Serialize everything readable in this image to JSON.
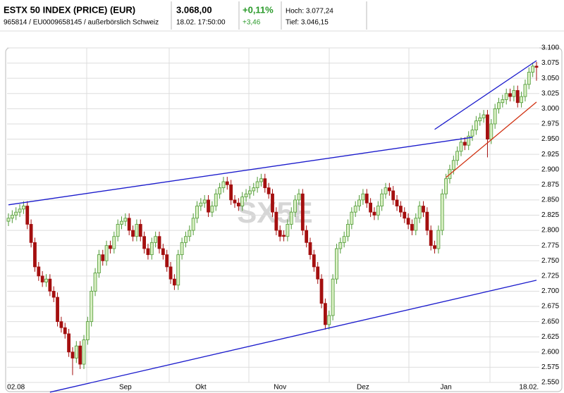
{
  "header": {
    "name": "ESTX 50 INDEX (PRICE) (EUR)",
    "ids": "965814 / EU0009658145 / außerbörslich Schweiz",
    "price": "3.068,00",
    "time": "18.02. 17:50:00",
    "change_pct": "+0,11%",
    "change_abs": "+3,46",
    "high": "Hoch: 3.077,24",
    "low": "Tief: 3.046,15"
  },
  "chart_data": {
    "type": "candlestick",
    "watermark": "SX5E",
    "categories": [
      null,
      null,
      "02.08",
      null,
      null,
      null,
      null,
      null,
      null,
      null,
      null,
      null,
      null,
      null,
      null,
      null,
      null,
      null,
      null,
      null,
      null,
      null,
      null,
      null,
      null,
      null,
      null,
      null,
      null,
      null,
      null,
      "Sep",
      null,
      null,
      null,
      null,
      null,
      null,
      null,
      null,
      null,
      null,
      null,
      null,
      null,
      null,
      null,
      null,
      null,
      null,
      null,
      "Okt",
      null,
      null,
      null,
      null,
      null,
      null,
      null,
      null,
      null,
      null,
      null,
      null,
      null,
      null,
      null,
      null,
      null,
      null,
      null,
      null,
      "Nov",
      null,
      null,
      null,
      null,
      null,
      null,
      null,
      null,
      null,
      null,
      null,
      null,
      null,
      null,
      null,
      null,
      null,
      null,
      null,
      null,
      null,
      "Dez",
      null,
      null,
      null,
      null,
      null,
      null,
      null,
      null,
      null,
      null,
      null,
      null,
      null,
      null,
      null,
      null,
      null,
      null,
      null,
      null,
      null,
      "Jan",
      null,
      null,
      null,
      null,
      null,
      null,
      null,
      null,
      null,
      null,
      null,
      null,
      null,
      null,
      null,
      null,
      null,
      null,
      null,
      null,
      null,
      "18.02.",
      null,
      null
    ],
    "open": [
      2815,
      2820,
      2825,
      2830,
      2835,
      2840,
      2810,
      2780,
      2740,
      2725,
      2715,
      2720,
      2700,
      2690,
      2650,
      2640,
      2630,
      2600,
      2590,
      2610,
      2580,
      2620,
      2650,
      2700,
      2730,
      2760,
      2750,
      2775,
      2770,
      2790,
      2810,
      2815,
      2820,
      2800,
      2790,
      2810,
      2790,
      2770,
      2760,
      2780,
      2790,
      2770,
      2760,
      2740,
      2720,
      2710,
      2760,
      2780,
      2790,
      2800,
      2820,
      2840,
      2845,
      2850,
      2830,
      2840,
      2860,
      2870,
      2880,
      2875,
      2850,
      2845,
      2840,
      2855,
      2860,
      2865,
      2870,
      2880,
      2885,
      2870,
      2860,
      2830,
      2800,
      2792,
      2790,
      2810,
      2830,
      2850,
      2860,
      2800,
      2780,
      2760,
      2740,
      2720,
      2680,
      2645,
      2660,
      2720,
      2770,
      2780,
      2790,
      2810,
      2830,
      2840,
      2850,
      2860,
      2845,
      2830,
      2825,
      2840,
      2860,
      2870,
      2865,
      2850,
      2840,
      2830,
      2820,
      2810,
      2800,
      2820,
      2840,
      2830,
      2800,
      2775,
      2770,
      2800,
      2860,
      2885,
      2900,
      2915,
      2930,
      2945,
      2940,
      2955,
      2965,
      2980,
      2985,
      2990,
      2950,
      2975,
      3000,
      3010,
      3015,
      3025,
      3020,
      3030,
      3010,
      3020,
      3040,
      3060,
      3070
    ],
    "high": [
      2828,
      2833,
      2838,
      2843,
      2848,
      2848,
      2818,
      2788,
      2748,
      2733,
      2728,
      2728,
      2708,
      2698,
      2658,
      2648,
      2638,
      2608,
      2618,
      2618,
      2628,
      2658,
      2708,
      2738,
      2768,
      2768,
      2783,
      2783,
      2798,
      2818,
      2823,
      2828,
      2828,
      2808,
      2818,
      2818,
      2798,
      2778,
      2788,
      2798,
      2798,
      2778,
      2768,
      2748,
      2728,
      2768,
      2788,
      2798,
      2808,
      2828,
      2848,
      2853,
      2858,
      2858,
      2848,
      2868,
      2878,
      2888,
      2888,
      2883,
      2858,
      2853,
      2863,
      2868,
      2873,
      2878,
      2888,
      2893,
      2893,
      2878,
      2868,
      2838,
      2808,
      2800,
      2818,
      2838,
      2858,
      2868,
      2868,
      2808,
      2788,
      2768,
      2748,
      2728,
      2688,
      2668,
      2728,
      2778,
      2788,
      2798,
      2818,
      2838,
      2848,
      2858,
      2868,
      2868,
      2853,
      2838,
      2848,
      2868,
      2878,
      2878,
      2873,
      2858,
      2848,
      2838,
      2828,
      2818,
      2828,
      2848,
      2848,
      2838,
      2808,
      2783,
      2808,
      2868,
      2893,
      2908,
      2923,
      2938,
      2953,
      2953,
      2963,
      2973,
      2988,
      2993,
      2998,
      2998,
      2983,
      3008,
      3018,
      3023,
      3033,
      3033,
      3038,
      3038,
      3028,
      3048,
      3068,
      3076,
      3077
    ],
    "low": [
      2807,
      2812,
      2817,
      2822,
      2827,
      2802,
      2772,
      2732,
      2717,
      2707,
      2707,
      2692,
      2682,
      2642,
      2632,
      2622,
      2592,
      2562,
      2582,
      2572,
      2572,
      2612,
      2642,
      2692,
      2722,
      2742,
      2742,
      2762,
      2762,
      2782,
      2802,
      2807,
      2792,
      2782,
      2782,
      2782,
      2762,
      2752,
      2752,
      2772,
      2762,
      2752,
      2732,
      2712,
      2702,
      2702,
      2752,
      2772,
      2782,
      2792,
      2812,
      2832,
      2837,
      2822,
      2822,
      2832,
      2852,
      2862,
      2867,
      2842,
      2837,
      2832,
      2832,
      2847,
      2852,
      2857,
      2862,
      2872,
      2862,
      2852,
      2822,
      2792,
      2782,
      2782,
      2782,
      2802,
      2822,
      2842,
      2792,
      2772,
      2752,
      2732,
      2712,
      2672,
      2637,
      2637,
      2652,
      2712,
      2762,
      2772,
      2782,
      2802,
      2822,
      2832,
      2842,
      2837,
      2822,
      2817,
      2817,
      2832,
      2852,
      2857,
      2842,
      2832,
      2822,
      2812,
      2802,
      2792,
      2792,
      2812,
      2822,
      2792,
      2767,
      2762,
      2762,
      2792,
      2852,
      2877,
      2892,
      2907,
      2922,
      2932,
      2932,
      2947,
      2957,
      2972,
      2977,
      2920,
      2942,
      2967,
      2992,
      3002,
      3007,
      3012,
      3012,
      3002,
      3002,
      3012,
      3032,
      3052,
      3046
    ],
    "close": [
      2820,
      2825,
      2830,
      2835,
      2840,
      2810,
      2780,
      2740,
      2725,
      2715,
      2720,
      2700,
      2690,
      2650,
      2640,
      2630,
      2600,
      2590,
      2610,
      2580,
      2620,
      2650,
      2700,
      2730,
      2760,
      2750,
      2775,
      2770,
      2790,
      2810,
      2815,
      2820,
      2800,
      2790,
      2810,
      2790,
      2770,
      2760,
      2780,
      2790,
      2770,
      2760,
      2740,
      2720,
      2710,
      2760,
      2780,
      2790,
      2800,
      2820,
      2840,
      2845,
      2850,
      2830,
      2840,
      2860,
      2870,
      2880,
      2875,
      2850,
      2845,
      2840,
      2855,
      2860,
      2865,
      2870,
      2880,
      2885,
      2870,
      2860,
      2830,
      2800,
      2790,
      2790,
      2810,
      2830,
      2850,
      2860,
      2800,
      2780,
      2760,
      2740,
      2720,
      2680,
      2645,
      2660,
      2720,
      2770,
      2780,
      2790,
      2810,
      2830,
      2840,
      2850,
      2860,
      2845,
      2830,
      2825,
      2840,
      2860,
      2870,
      2865,
      2850,
      2840,
      2830,
      2820,
      2810,
      2800,
      2820,
      2840,
      2830,
      2800,
      2775,
      2770,
      2800,
      2860,
      2885,
      2900,
      2915,
      2930,
      2945,
      2940,
      2955,
      2965,
      2980,
      2985,
      2990,
      2950,
      2975,
      3000,
      3010,
      3015,
      3025,
      3020,
      3030,
      3010,
      3020,
      3040,
      3060,
      3070,
      3068
    ],
    "up_color": "#d8efc2",
    "up_edge": "#4f9a35",
    "down_color": "#a40f0f",
    "ylim": [
      2550,
      3100
    ],
    "yticks": [
      {
        "value": 2550,
        "label": "2.550"
      },
      {
        "value": 2575,
        "label": "2.575"
      },
      {
        "value": 2600,
        "label": "2.600"
      },
      {
        "value": 2625,
        "label": "2.625"
      },
      {
        "value": 2650,
        "label": "2.650"
      },
      {
        "value": 2675,
        "label": "2.675"
      },
      {
        "value": 2700,
        "label": "2.700"
      },
      {
        "value": 2725,
        "label": "2.725"
      },
      {
        "value": 2750,
        "label": "2.750"
      },
      {
        "value": 2775,
        "label": "2.775"
      },
      {
        "value": 2800,
        "label": "2.800"
      },
      {
        "value": 2825,
        "label": "2.825"
      },
      {
        "value": 2850,
        "label": "2.850"
      },
      {
        "value": 2875,
        "label": "2.875"
      },
      {
        "value": 2900,
        "label": "2.900"
      },
      {
        "value": 2925,
        "label": "2.925"
      },
      {
        "value": 2950,
        "label": "2.950"
      },
      {
        "value": 2975,
        "label": "2.975"
      },
      {
        "value": 3000,
        "label": "3.000"
      },
      {
        "value": 3025,
        "label": "3.025"
      },
      {
        "value": 3050,
        "label": "3.050"
      },
      {
        "value": 3075,
        "label": "3.075"
      },
      {
        "value": 3100,
        "label": "3.100"
      }
    ],
    "grid": true,
    "trend_lines": [
      {
        "color": "#1a1acc",
        "x": [
          11,
          140
        ],
        "y": [
          2534,
          2718
        ]
      },
      {
        "color": "#1a1acc",
        "x": [
          0,
          123
        ],
        "y": [
          2842,
          2953
        ]
      },
      {
        "color": "#1a1acc",
        "x": [
          113,
          140
        ],
        "y": [
          2966,
          3079
        ]
      },
      {
        "color": "#d03010",
        "x": [
          116,
          140
        ],
        "y": [
          2887,
          3011
        ]
      }
    ]
  }
}
